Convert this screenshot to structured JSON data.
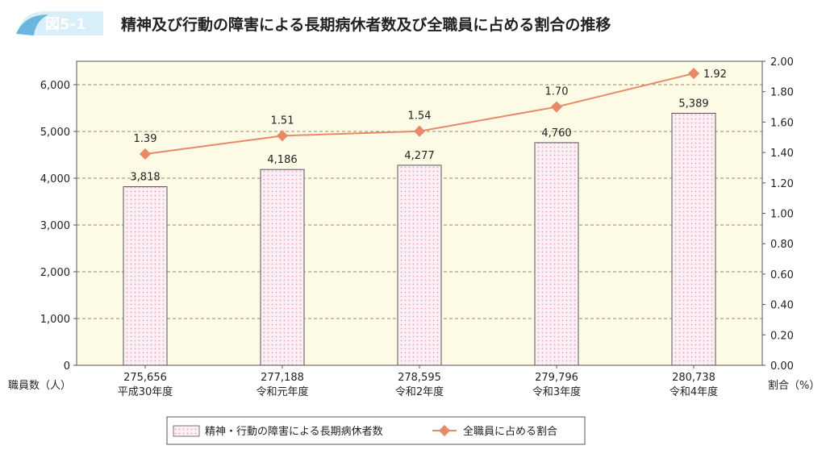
{
  "figure": {
    "label": "図5-1",
    "title": "精神及び行動の障害による長期病休者数及び全職員に占める割合の推移"
  },
  "colors": {
    "plot_background": "#fdfbe6",
    "bar_fill": "#fdf0f5",
    "bar_dots": "#e89ac0",
    "bar_stroke": "#555555",
    "line": "#e8896a",
    "gridline": "#9a8a66",
    "badge_light": "#d8eef9",
    "badge_dark": "#6ab6e0"
  },
  "chart_data": {
    "type": "bar+line",
    "categories": [
      "平成30年度",
      "令和元年度",
      "令和2年度",
      "令和3年度",
      "令和4年度"
    ],
    "staff_counts": [
      "275,656",
      "277,188",
      "278,595",
      "279,796",
      "280,738"
    ],
    "series": [
      {
        "name": "精神・行動の障害による長期病休者数",
        "type": "bar",
        "axis": "left",
        "values": [
          3818,
          4186,
          4277,
          4760,
          5389
        ],
        "labels": [
          "3,818",
          "4,186",
          "4,277",
          "4,760",
          "5,389"
        ]
      },
      {
        "name": "全職員に占める割合",
        "type": "line",
        "axis": "right",
        "values": [
          1.39,
          1.51,
          1.54,
          1.7,
          1.92
        ],
        "labels": [
          "1.39",
          "1.51",
          "1.54",
          "1.70",
          "1.92"
        ]
      }
    ],
    "left_axis": {
      "label": "職員数（人）",
      "min": 0,
      "max": 6500,
      "ticks": [
        0,
        1000,
        2000,
        3000,
        4000,
        5000,
        6000
      ],
      "tick_labels": [
        "0",
        "1,000",
        "2,000",
        "3,000",
        "4,000",
        "5,000",
        "6,000"
      ]
    },
    "right_axis": {
      "label": "割合（%）",
      "min": 0,
      "max": 2.0,
      "ticks": [
        0,
        0.2,
        0.4,
        0.6,
        0.8,
        1.0,
        1.2,
        1.4,
        1.6,
        1.8,
        2.0
      ],
      "tick_labels": [
        "0.00",
        "0.20",
        "0.40",
        "0.60",
        "0.80",
        "1.00",
        "1.20",
        "1.40",
        "1.60",
        "1.80",
        "2.00"
      ]
    },
    "grid": true,
    "legend_position": "bottom-center"
  }
}
